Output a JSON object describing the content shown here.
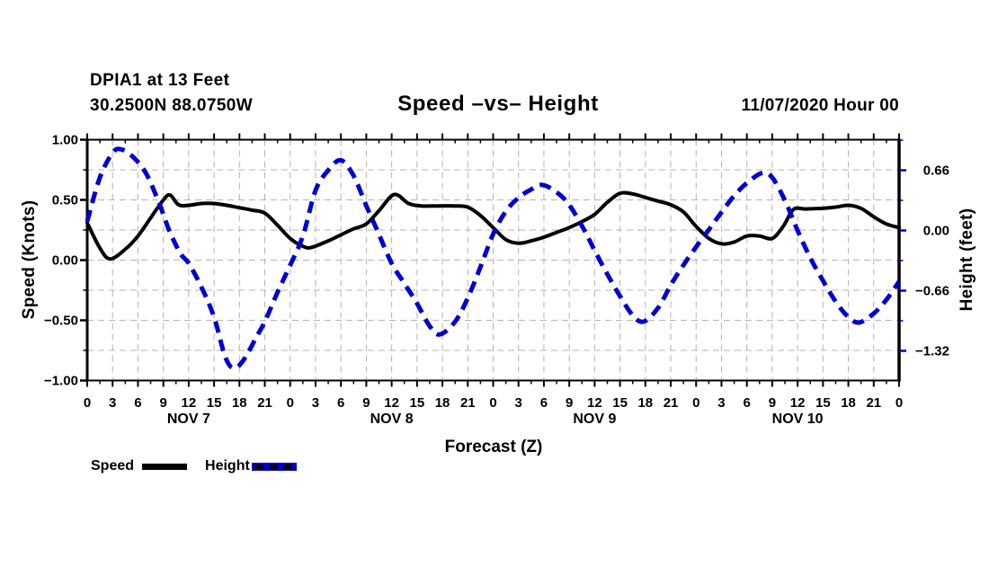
{
  "header": {
    "station_line1": "DPIA1 at 13 Feet",
    "station_line2": "30.2500N 88.0750W",
    "title": "Speed –vs– Height",
    "datetime": "11/07/2020 Hour 00"
  },
  "legend": {
    "speed_label": "Speed",
    "height_label": "Height"
  },
  "chart_data": {
    "type": "line",
    "title": "Speed –vs– Height",
    "xlabel": "Forecast (Z)",
    "x_range_hours": [
      0,
      96
    ],
    "x_axis": {
      "major_tick_step_hours": 3,
      "minor_tick_step_hours": 1.5,
      "tick_labels": [
        "0",
        "3",
        "6",
        "9",
        "12",
        "15",
        "18",
        "21",
        "0",
        "3",
        "6",
        "9",
        "12",
        "15",
        "18",
        "21",
        "0",
        "3",
        "6",
        "9",
        "12",
        "15",
        "18",
        "21",
        "0",
        "3",
        "6",
        "9",
        "12",
        "15",
        "18",
        "21",
        "0"
      ],
      "day_labels": [
        {
          "label": "NOV 7",
          "hour": 12
        },
        {
          "label": "NOV 8",
          "hour": 36
        },
        {
          "label": "NOV 9",
          "hour": 60
        },
        {
          "label": "NOV 10",
          "hour": 84
        }
      ]
    },
    "y_left": {
      "title": "Speed (Knots)",
      "range": [
        -1.0,
        1.0
      ],
      "minor_step": 0.25,
      "ticks": [
        {
          "value": 1.0,
          "label": "1.00"
        },
        {
          "value": 0.5,
          "label": "0.50"
        },
        {
          "value": 0.0,
          "label": "0.00"
        },
        {
          "value": -0.5,
          "label": "−0.50"
        },
        {
          "value": -1.0,
          "label": "−1.00"
        }
      ]
    },
    "y_right": {
      "title": "Height (feet)",
      "ticks": [
        {
          "value": 0.66,
          "label": "0.66"
        },
        {
          "value": 0.0,
          "label": "0.00"
        },
        {
          "value": -0.66,
          "label": "−0.66"
        },
        {
          "value": -1.32,
          "label": "−1.32"
        }
      ],
      "minor_values": [
        0.99,
        0.33,
        -0.33,
        -0.99
      ]
    },
    "grid": {
      "on": true,
      "color": "#b4b4b4"
    },
    "series": [
      {
        "name": "Speed",
        "axis": "left",
        "color": "#000000",
        "style": "solid",
        "points": [
          [
            0,
            0.31
          ],
          [
            1.5,
            0.1
          ],
          [
            2.7,
            0.01
          ],
          [
            4.5,
            0.09
          ],
          [
            6,
            0.2
          ],
          [
            7.5,
            0.35
          ],
          [
            9,
            0.5
          ],
          [
            9.8,
            0.54
          ],
          [
            10.8,
            0.46
          ],
          [
            12,
            0.455
          ],
          [
            13.5,
            0.47
          ],
          [
            15,
            0.47
          ],
          [
            16.5,
            0.455
          ],
          [
            18,
            0.435
          ],
          [
            19.5,
            0.415
          ],
          [
            21,
            0.39
          ],
          [
            22.5,
            0.29
          ],
          [
            24,
            0.18
          ],
          [
            25.5,
            0.115
          ],
          [
            26.5,
            0.105
          ],
          [
            28.5,
            0.16
          ],
          [
            30,
            0.21
          ],
          [
            31.5,
            0.26
          ],
          [
            33,
            0.3
          ],
          [
            34.5,
            0.41
          ],
          [
            36.3,
            0.545
          ],
          [
            38,
            0.47
          ],
          [
            39.5,
            0.45
          ],
          [
            41.5,
            0.45
          ],
          [
            43.5,
            0.45
          ],
          [
            45,
            0.44
          ],
          [
            46.5,
            0.37
          ],
          [
            48,
            0.27
          ],
          [
            49.5,
            0.17
          ],
          [
            51,
            0.14
          ],
          [
            52.5,
            0.16
          ],
          [
            54,
            0.19
          ],
          [
            55.5,
            0.23
          ],
          [
            57,
            0.27
          ],
          [
            58.5,
            0.32
          ],
          [
            60,
            0.38
          ],
          [
            61.5,
            0.48
          ],
          [
            63,
            0.555
          ],
          [
            64.5,
            0.55
          ],
          [
            66,
            0.52
          ],
          [
            67.5,
            0.49
          ],
          [
            69,
            0.46
          ],
          [
            70.5,
            0.4
          ],
          [
            72,
            0.28
          ],
          [
            73.5,
            0.18
          ],
          [
            75,
            0.135
          ],
          [
            76.5,
            0.15
          ],
          [
            78,
            0.2
          ],
          [
            79.5,
            0.2
          ],
          [
            81,
            0.18
          ],
          [
            82.3,
            0.28
          ],
          [
            83.5,
            0.42
          ],
          [
            85,
            0.425
          ],
          [
            87,
            0.43
          ],
          [
            88.5,
            0.44
          ],
          [
            90,
            0.455
          ],
          [
            91.5,
            0.43
          ],
          [
            93,
            0.36
          ],
          [
            94.5,
            0.3
          ],
          [
            96,
            0.27
          ]
        ]
      },
      {
        "name": "Height",
        "axis": "right",
        "color": "#0000cd",
        "style": "dashed",
        "points": [
          [
            0,
            0.1
          ],
          [
            1.5,
            0.58
          ],
          [
            3,
            0.85
          ],
          [
            4,
            0.89
          ],
          [
            5.5,
            0.8
          ],
          [
            7,
            0.62
          ],
          [
            8.5,
            0.3
          ],
          [
            9.7,
            0.0
          ],
          [
            11,
            -0.25
          ],
          [
            12,
            -0.36
          ],
          [
            13.5,
            -0.62
          ],
          [
            15,
            -0.95
          ],
          [
            16.3,
            -1.38
          ],
          [
            17.3,
            -1.51
          ],
          [
            18.5,
            -1.42
          ],
          [
            20,
            -1.17
          ],
          [
            21,
            -1.0
          ],
          [
            22.5,
            -0.68
          ],
          [
            24,
            -0.38
          ],
          [
            25.5,
            -0.06
          ],
          [
            27,
            0.44
          ],
          [
            28.5,
            0.66
          ],
          [
            30,
            0.77
          ],
          [
            31.5,
            0.6
          ],
          [
            33,
            0.27
          ],
          [
            34.3,
            0.0
          ],
          [
            36,
            -0.36
          ],
          [
            37.5,
            -0.58
          ],
          [
            39,
            -0.8
          ],
          [
            40.5,
            -1.05
          ],
          [
            41.7,
            -1.14
          ],
          [
            43.5,
            -1.0
          ],
          [
            45,
            -0.74
          ],
          [
            46.5,
            -0.4
          ],
          [
            48,
            -0.04
          ],
          [
            49.5,
            0.21
          ],
          [
            51,
            0.36
          ],
          [
            52.5,
            0.45
          ],
          [
            53.8,
            0.5
          ],
          [
            55.5,
            0.42
          ],
          [
            57,
            0.28
          ],
          [
            58.8,
            0.0
          ],
          [
            60,
            -0.22
          ],
          [
            61.5,
            -0.48
          ],
          [
            63,
            -0.72
          ],
          [
            64.5,
            -0.93
          ],
          [
            65.8,
            -1.0
          ],
          [
            67.5,
            -0.85
          ],
          [
            69,
            -0.6
          ],
          [
            70.5,
            -0.38
          ],
          [
            72,
            -0.18
          ],
          [
            73.6,
            0.02
          ],
          [
            75,
            0.2
          ],
          [
            76.5,
            0.38
          ],
          [
            78,
            0.52
          ],
          [
            79.8,
            0.63
          ],
          [
            81,
            0.58
          ],
          [
            82.5,
            0.33
          ],
          [
            84,
            0.0
          ],
          [
            85.5,
            -0.3
          ],
          [
            87,
            -0.55
          ],
          [
            88.5,
            -0.78
          ],
          [
            90,
            -0.95
          ],
          [
            91.3,
            -1.01
          ],
          [
            93,
            -0.91
          ],
          [
            94.5,
            -0.76
          ],
          [
            96,
            -0.56
          ]
        ]
      }
    ]
  }
}
